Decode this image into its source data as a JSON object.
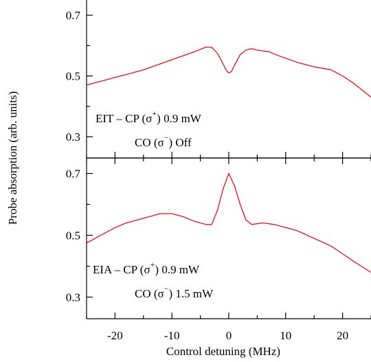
{
  "chart_data": {
    "type": "line",
    "xlabel": "Control detuning (MHz)",
    "ylabel": "Probe absorption (arb. units)",
    "xlim": [
      -25,
      25
    ],
    "x_ticks": [
      -20,
      -10,
      0,
      10,
      20
    ],
    "x_tick_labels": [
      "-20",
      "-10",
      "0",
      "10",
      "20"
    ],
    "x_minor_ticks": [
      -25,
      -15,
      -5,
      5,
      15,
      25
    ],
    "line_color": "#e8101a",
    "grid": false,
    "panels": [
      {
        "name": "top",
        "ylim": [
          0.23,
          0.75
        ],
        "y_ticks": [
          0.3,
          0.5,
          0.7
        ],
        "y_tick_labels": [
          "0.3",
          "0.5",
          "0.7"
        ],
        "y_minor_ticks": [
          0.4,
          0.6
        ],
        "annotation": {
          "line1": {
            "label": "EIT – CP (σ",
            "sup": "+",
            "tail": ")  0.9 mW"
          },
          "line2": {
            "label": "CO (σ",
            "sup": "−",
            "tail": ")  Off"
          }
        },
        "series": [
          {
            "x": [
              -25,
              -22,
              -18,
              -15,
              -12,
              -9,
              -6,
              -4,
              -3,
              -2,
              -1,
              -0.5,
              0,
              0.5,
              1,
              2,
              3,
              4,
              5,
              7,
              9,
              12,
              15,
              18,
              20,
              22,
              24,
              25
            ],
            "y": [
              0.47,
              0.485,
              0.505,
              0.52,
              0.54,
              0.56,
              0.58,
              0.595,
              0.594,
              0.575,
              0.54,
              0.52,
              0.51,
              0.515,
              0.535,
              0.57,
              0.585,
              0.59,
              0.585,
              0.58,
              0.565,
              0.545,
              0.53,
              0.52,
              0.5,
              0.475,
              0.445,
              0.43
            ]
          }
        ]
      },
      {
        "name": "bottom",
        "ylim": [
          0.23,
          0.75
        ],
        "y_ticks": [
          0.3,
          0.5,
          0.7
        ],
        "y_tick_labels": [
          "0.3",
          "0.5",
          "0.7"
        ],
        "y_minor_ticks": [
          0.4,
          0.6
        ],
        "annotation": {
          "line1": {
            "label": "EIA – CP (σ",
            "sup": "+",
            "tail": ")  0.9 mW"
          },
          "line2": {
            "label": "CO (σ",
            "sup": "−",
            "tail": ")  1.5 mW"
          }
        },
        "series": [
          {
            "x": [
              -25,
              -22,
              -20,
              -18,
              -15,
              -12,
              -10,
              -8,
              -6,
              -4,
              -3,
              -2,
              -1,
              0,
              1,
              2,
              3,
              4,
              6,
              8,
              10,
              12,
              15,
              18,
              20,
              22,
              25
            ],
            "y": [
              0.475,
              0.505,
              0.525,
              0.54,
              0.555,
              0.57,
              0.57,
              0.56,
              0.545,
              0.535,
              0.535,
              0.58,
              0.65,
              0.7,
              0.66,
              0.6,
              0.55,
              0.535,
              0.54,
              0.535,
              0.525,
              0.515,
              0.49,
              0.465,
              0.44,
              0.415,
              0.38
            ]
          }
        ]
      }
    ]
  }
}
